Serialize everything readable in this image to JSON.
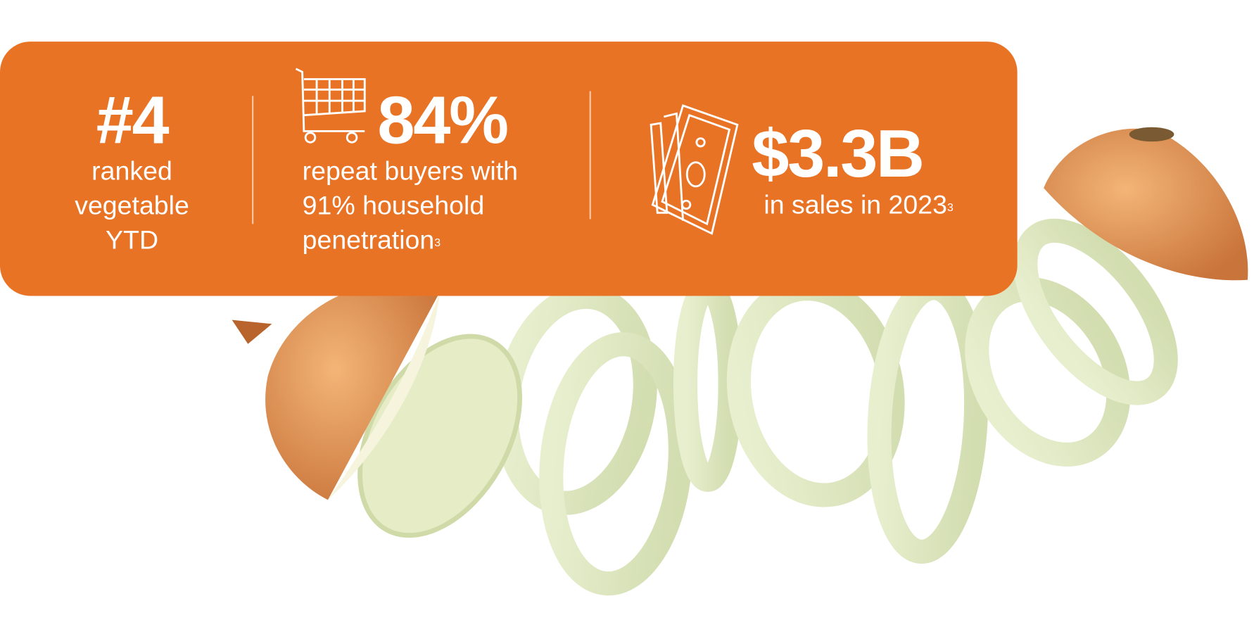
{
  "colors": {
    "panel": "#e97325",
    "text": "#ffffff"
  },
  "stats": [
    {
      "value": "#4",
      "lines": [
        "ranked",
        "vegetable",
        "YTD"
      ]
    },
    {
      "icon": "shopping-cart-icon",
      "value": "84%",
      "lines": [
        "repeat buyers with",
        "91% household",
        "penetration"
      ],
      "footnote": "3"
    },
    {
      "icon": "money-bills-icon",
      "value": "$3.3B",
      "lines": [
        "in sales in 2023"
      ],
      "footnote": "3"
    }
  ]
}
